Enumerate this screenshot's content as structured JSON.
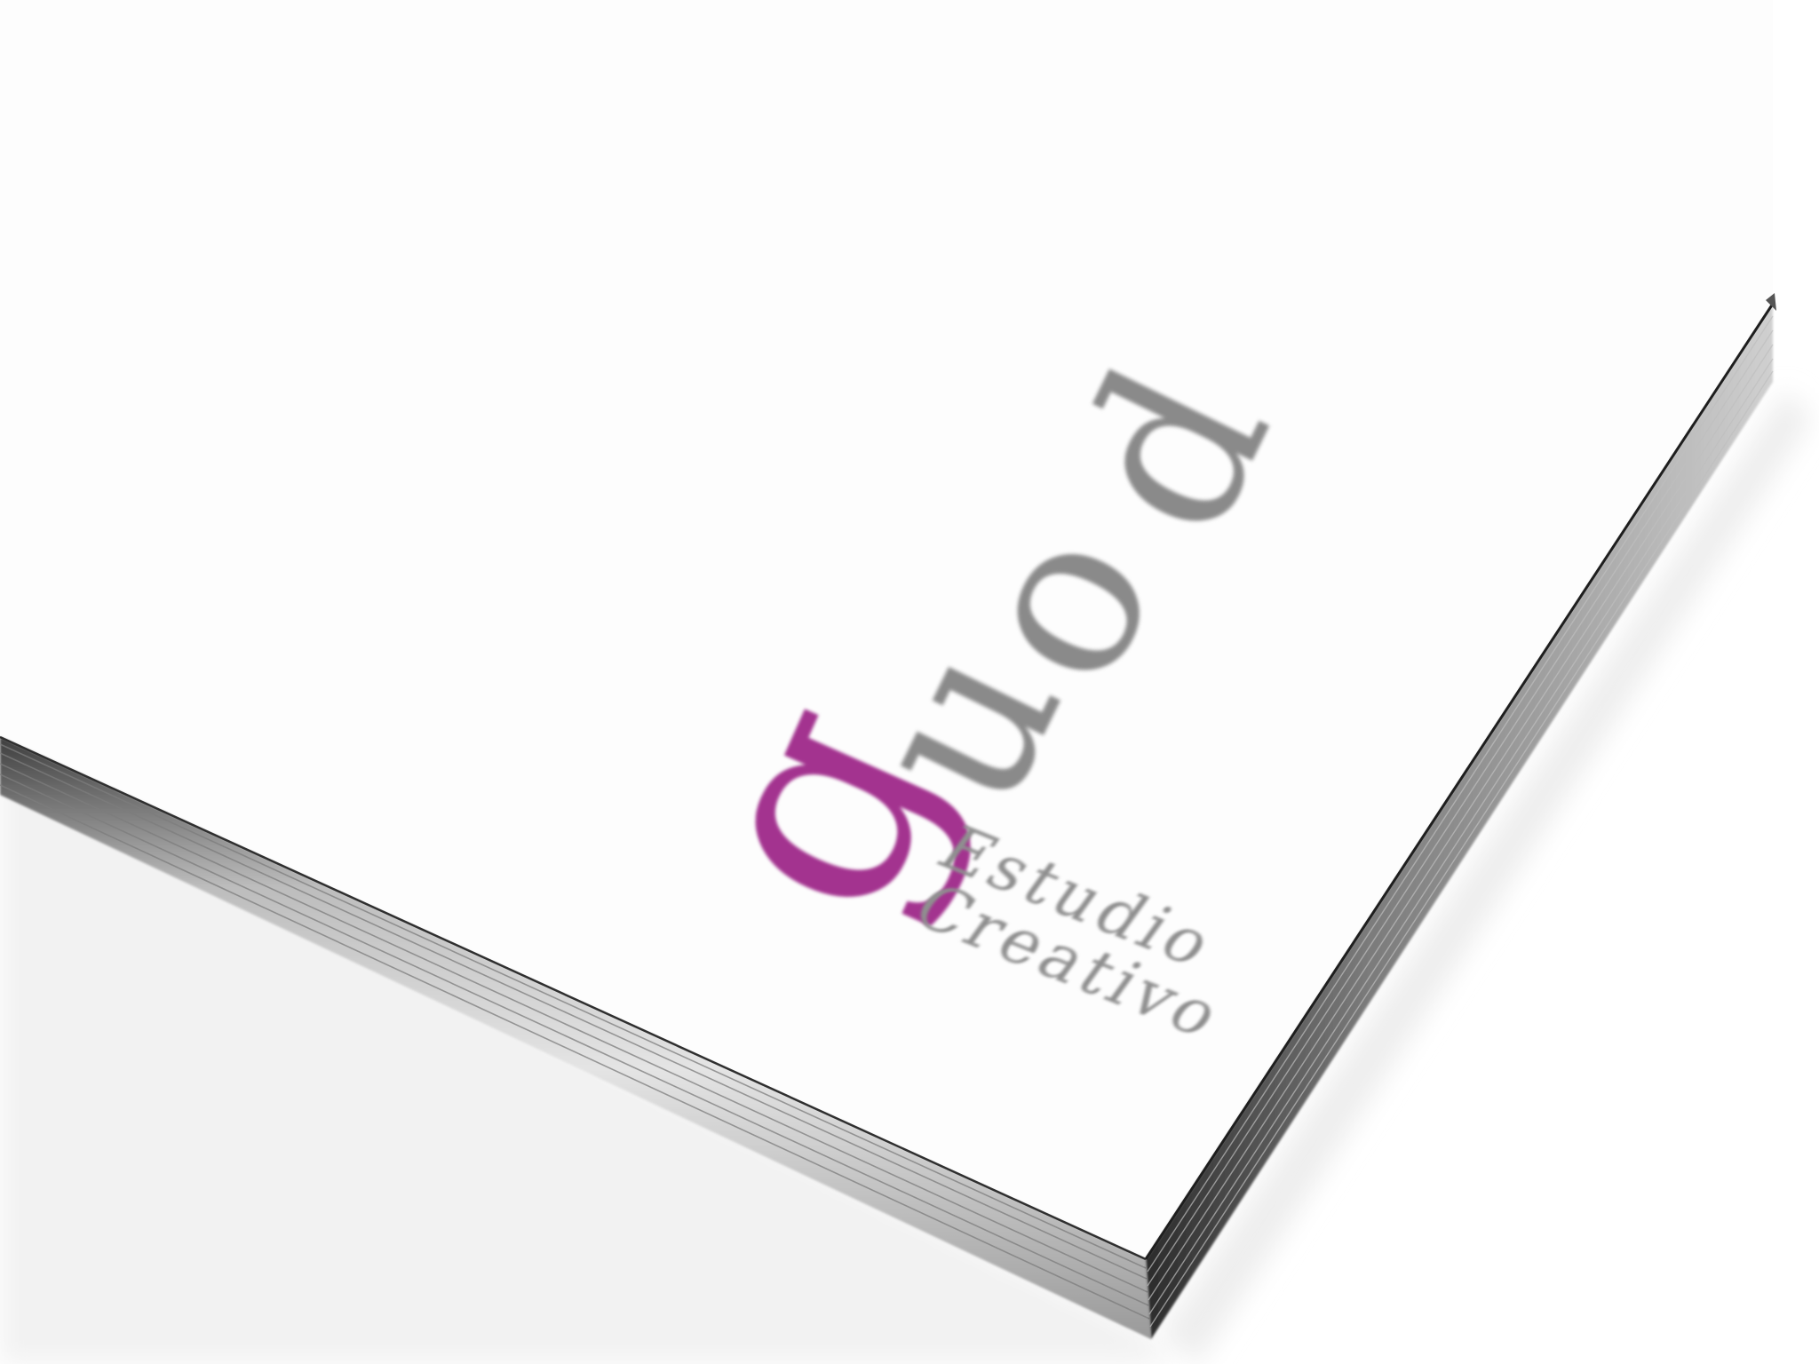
{
  "photo": {
    "subject": "business card stack",
    "colors": {
      "background": "#ffffff",
      "card_face": "#fdfdfd",
      "card_edge_light": "#d9d9d9",
      "card_edge_dark": "#5a5a5a",
      "logo_gray": "#8a8a8a",
      "logo_magenta": "#a3338f",
      "tagline_gray": "#8f8f8f"
    }
  },
  "logo": {
    "letters": [
      "d",
      "o",
      "u",
      "g"
    ],
    "tagline_line1": "Estudio",
    "tagline_line2": "Creativo"
  }
}
